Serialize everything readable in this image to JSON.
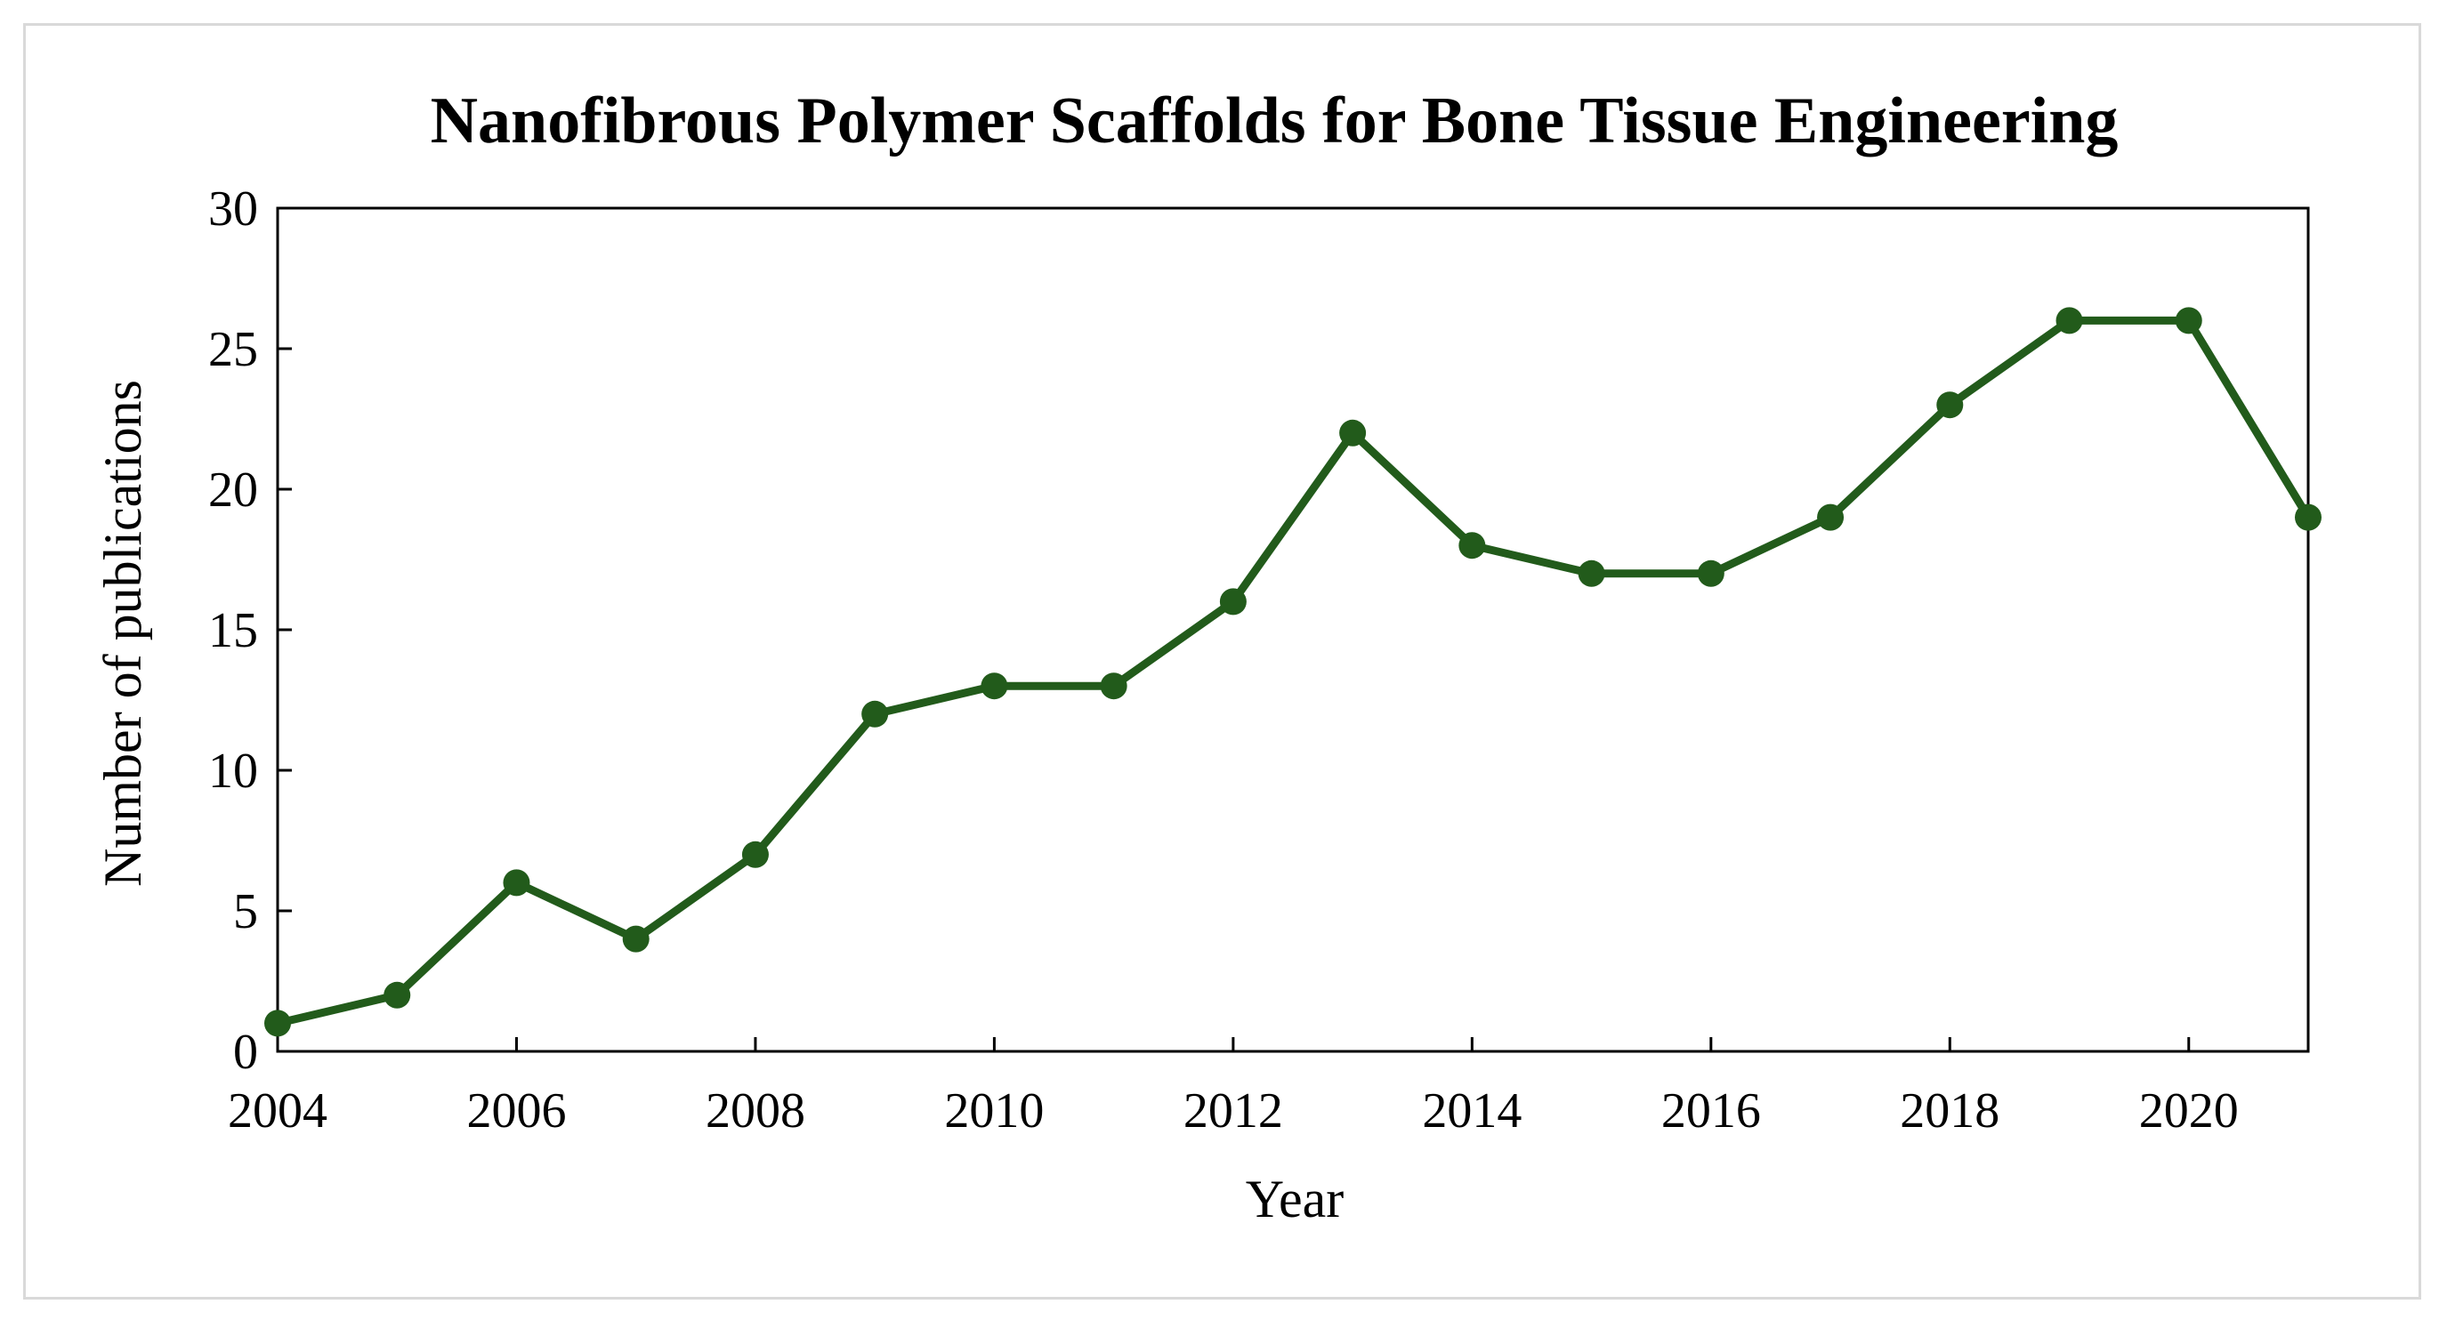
{
  "chart_data": {
    "type": "line",
    "title": "Nanofibrous Polymer Scaffolds for Bone Tissue Engineering",
    "xlabel": "Year",
    "ylabel": "Number of publications",
    "xlim": [
      2004,
      2021
    ],
    "ylim": [
      0,
      30
    ],
    "x_ticks": [
      "2004",
      "2006",
      "2008",
      "2010",
      "2012",
      "2014",
      "2016",
      "2018",
      "2020"
    ],
    "y_ticks": [
      "0",
      "5",
      "10",
      "15",
      "20",
      "25",
      "30"
    ],
    "grid": false,
    "legend": "none",
    "series": [
      {
        "color": "#225b1b",
        "x": [
          2004,
          2005,
          2006,
          2007,
          2008,
          2009,
          2010,
          2011,
          2012,
          2013,
          2014,
          2015,
          2016,
          2017,
          2018,
          2019,
          2020,
          2021
        ],
        "values": [
          1,
          2,
          6,
          4,
          7,
          12,
          13,
          13,
          16,
          22,
          18,
          17,
          17,
          19,
          23,
          26,
          26,
          19
        ]
      }
    ]
  }
}
